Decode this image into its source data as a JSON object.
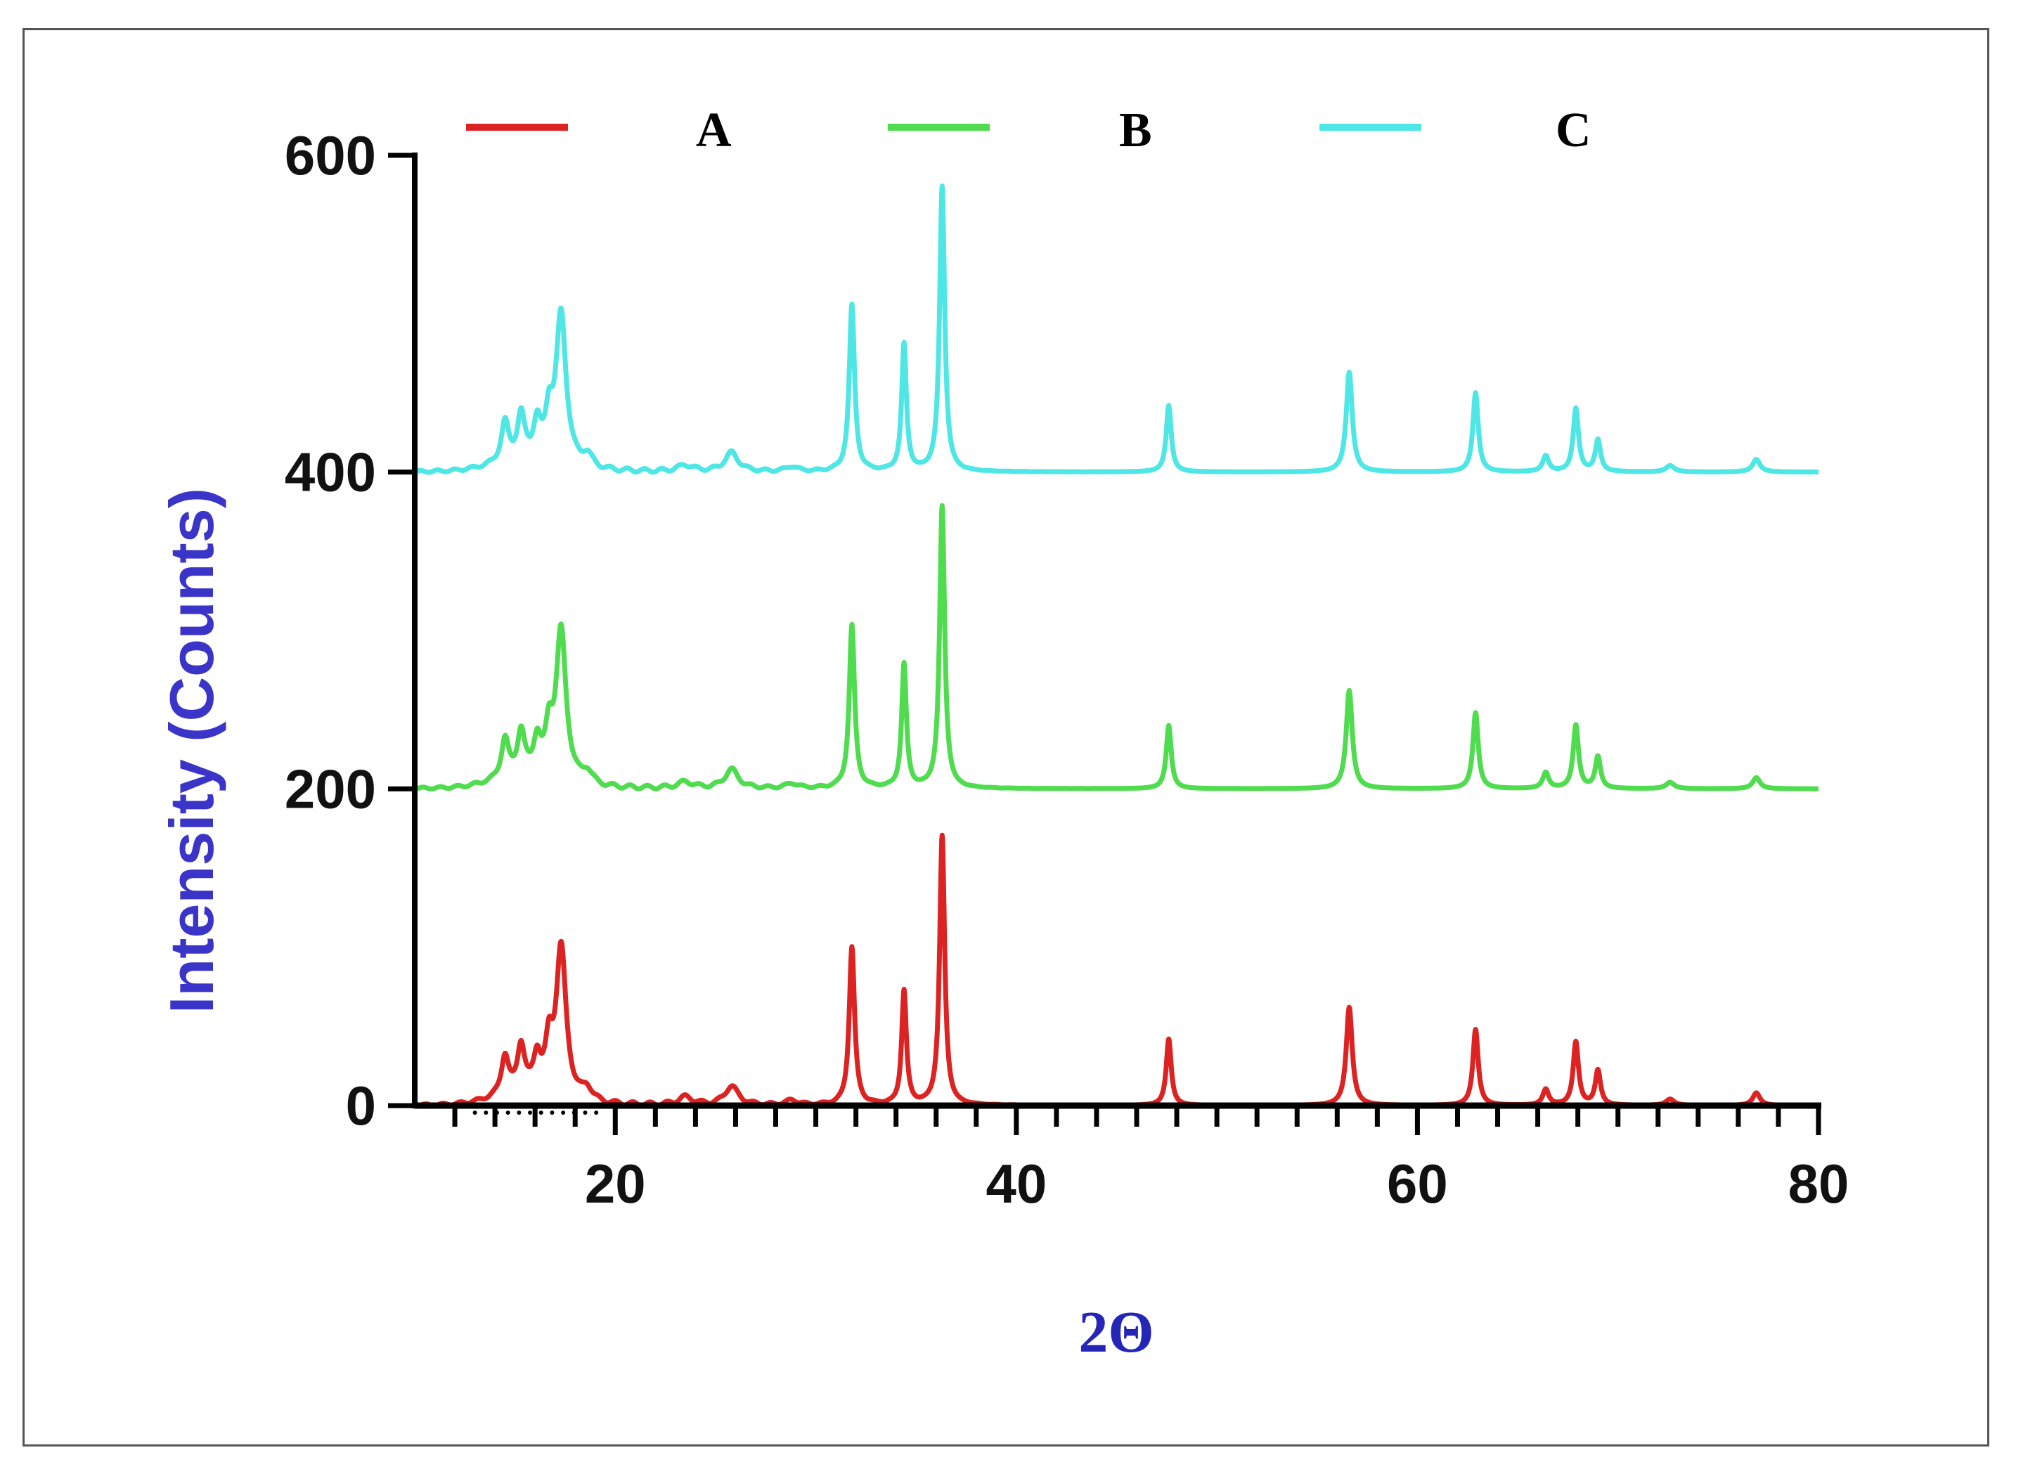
{
  "chart_data": {
    "type": "line",
    "title": "",
    "xlabel": "2Θ",
    "ylabel": "Intensity (Counts)",
    "xlim": [
      10,
      80
    ],
    "ylim": [
      0,
      600
    ],
    "xticks": [
      20,
      40,
      60,
      80
    ],
    "yticks": [
      0,
      200,
      400,
      600
    ],
    "legend_position": "top",
    "label_color": "#3a35c8",
    "grid": false,
    "peaks_2theta": [
      14.5,
      15.3,
      16.1,
      16.7,
      17.3,
      18.6,
      23.5,
      25.8,
      28.8,
      31.8,
      34.4,
      36.3,
      47.6,
      56.6,
      62.9,
      66.4,
      67.9,
      69.0,
      72.6,
      76.9
    ],
    "series": [
      {
        "name": "A",
        "color": "#dd2222",
        "baseline": 0,
        "peak_heights": [
          25,
          30,
          22,
          28,
          95,
          8,
          5,
          12,
          3,
          100,
          72,
          170,
          42,
          62,
          48,
          10,
          40,
          22,
          4,
          8
        ]
      },
      {
        "name": "B",
        "color": "#4fdc4f",
        "baseline": 200,
        "peak_heights": [
          25,
          28,
          22,
          27,
          95,
          8,
          4,
          12,
          3,
          103,
          78,
          178,
          40,
          62,
          48,
          10,
          40,
          20,
          4,
          7
        ]
      },
      {
        "name": "C",
        "color": "#4fe6e6",
        "baseline": 400,
        "peak_heights": [
          25,
          28,
          22,
          27,
          95,
          8,
          4,
          12,
          3,
          105,
          80,
          180,
          42,
          63,
          50,
          10,
          40,
          20,
          4,
          8
        ]
      }
    ]
  }
}
